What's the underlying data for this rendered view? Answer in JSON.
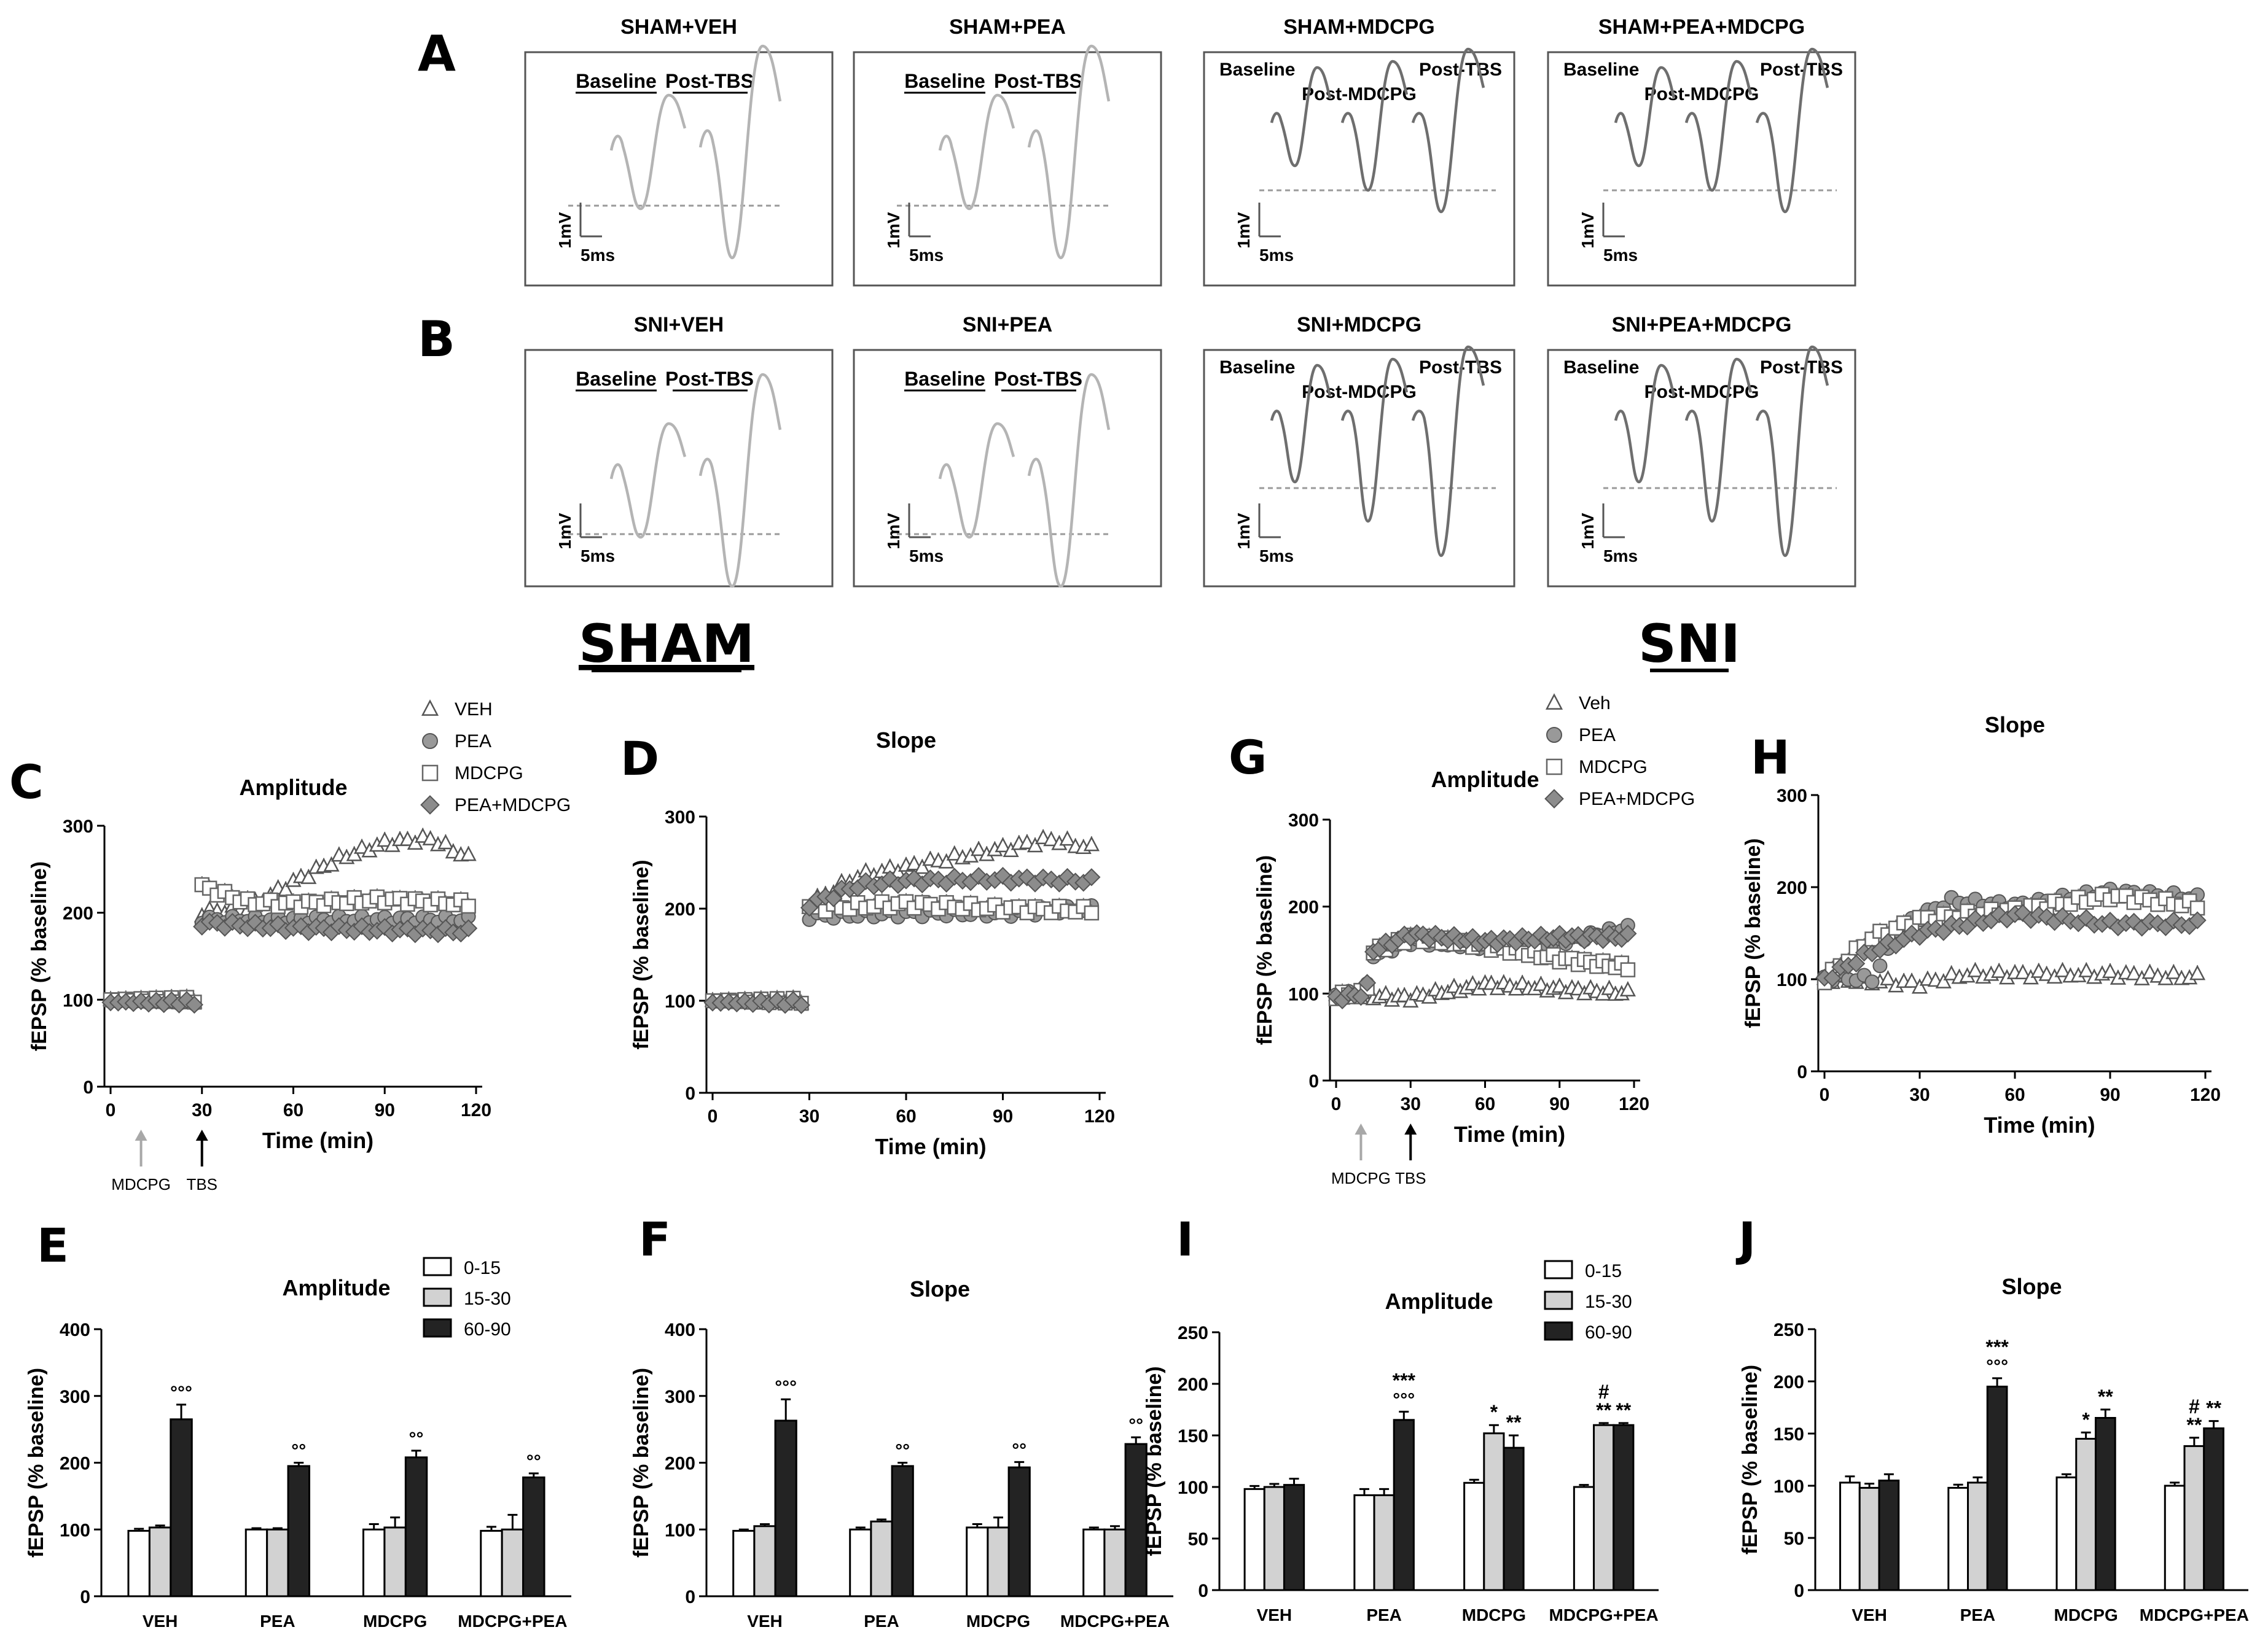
{
  "row_letters": {
    "A": "A",
    "B": "B"
  },
  "section_titles": {
    "sham": "SHAM",
    "sni": "SNI"
  },
  "trace_labels": {
    "baseline": "Baseline",
    "post_tbs": "Post-TBS",
    "post_mdcpg": "Post-MDCPG",
    "scale_mv": "1mV",
    "scale_ms": "5ms"
  },
  "trace_panels": [
    {
      "title": "SHAM+VEH",
      "type": "two"
    },
    {
      "title": "SHAM+PEA",
      "type": "two"
    },
    {
      "title": "SHAM+MDCPG",
      "type": "three"
    },
    {
      "title": "SHAM+PEA+MDCPG",
      "type": "three"
    },
    {
      "title": "SNI+VEH",
      "type": "two"
    },
    {
      "title": "SNI+PEA",
      "type": "two"
    },
    {
      "title": "SNI+MDCPG",
      "type": "three"
    },
    {
      "title": "SNI+PEA+MDCPG",
      "type": "three"
    }
  ],
  "markers": {
    "mdcpg": "MDCPG",
    "tbs": "TBS"
  },
  "time_label": "Time (min)",
  "y_label": "fEPSP (% baseline)",
  "chart_data": [
    {
      "panel": "C",
      "type": "scatter",
      "title": "Amplitude",
      "xlabel": "Time (min)",
      "ylabel": "fEPSP (% baseline)",
      "xlim": [
        0,
        120
      ],
      "ylim": [
        0,
        300
      ],
      "xticks": [
        0,
        30,
        60,
        90,
        120
      ],
      "yticks": [
        0,
        100,
        200,
        300
      ],
      "arrows": [
        {
          "x": 10,
          "label": "MDCPG",
          "color": "#a8a8a8"
        },
        {
          "x": 30,
          "label": "TBS",
          "color": "#000000"
        }
      ],
      "legend": [
        "VEH",
        "PEA",
        "MDCPG",
        "PEA+MDCPG"
      ],
      "series": [
        {
          "name": "VEH",
          "marker": "triangle",
          "baseline": 100,
          "points": [
            [
              30,
              200
            ],
            [
              45,
              205
            ],
            [
              60,
              235
            ],
            [
              75,
              262
            ],
            [
              90,
              280
            ],
            [
              105,
              285
            ],
            [
              118,
              262
            ]
          ]
        },
        {
          "name": "PEA",
          "marker": "circle",
          "baseline": 98,
          "points": [
            [
              30,
              192
            ],
            [
              120,
              192
            ]
          ]
        },
        {
          "name": "MDCPG",
          "marker": "square",
          "baseline": 100,
          "points": [
            [
              30,
              230
            ],
            [
              45,
              212
            ],
            [
              60,
              210
            ],
            [
              90,
              215
            ],
            [
              120,
              210
            ]
          ]
        },
        {
          "name": "PEA+MDCPG",
          "marker": "diamond",
          "baseline": 97,
          "points": [
            [
              30,
              188
            ],
            [
              60,
              182
            ],
            [
              90,
              180
            ],
            [
              120,
              178
            ]
          ]
        }
      ]
    },
    {
      "panel": "D",
      "type": "scatter",
      "title": "Slope",
      "xlabel": "Time (min)",
      "ylabel": "fEPSP (% baseline)",
      "xlim": [
        0,
        120
      ],
      "ylim": [
        0,
        300
      ],
      "xticks": [
        0,
        30,
        60,
        90,
        120
      ],
      "yticks": [
        0,
        100,
        200,
        300
      ],
      "arrows": [],
      "legend": [],
      "series": [
        {
          "name": "VEH",
          "marker": "triangle",
          "baseline": 100,
          "points": [
            [
              30,
              205
            ],
            [
              45,
              235
            ],
            [
              60,
              245
            ],
            [
              75,
              255
            ],
            [
              90,
              265
            ],
            [
              105,
              275
            ],
            [
              118,
              265
            ]
          ]
        },
        {
          "name": "PEA",
          "marker": "circle",
          "baseline": 100,
          "points": [
            [
              30,
              192
            ],
            [
              60,
              195
            ],
            [
              90,
              195
            ],
            [
              120,
              200
            ]
          ]
        },
        {
          "name": "MDCPG",
          "marker": "square",
          "baseline": 100,
          "points": [
            [
              30,
              200
            ],
            [
              60,
              205
            ],
            [
              90,
              200
            ],
            [
              120,
              198
            ]
          ]
        },
        {
          "name": "PEA+MDCPG",
          "marker": "diamond",
          "baseline": 98,
          "points": [
            [
              30,
              205
            ],
            [
              45,
              225
            ],
            [
              60,
              230
            ],
            [
              90,
              232
            ],
            [
              120,
              230
            ]
          ]
        }
      ]
    },
    {
      "panel": "G",
      "type": "scatter",
      "title": "Amplitude",
      "xlabel": "Time (min)",
      "ylabel": "fEPSP (% baseline)",
      "xlim": [
        0,
        120
      ],
      "ylim": [
        0,
        300
      ],
      "xticks": [
        0,
        30,
        60,
        90,
        120
      ],
      "yticks": [
        0,
        100,
        200,
        300
      ],
      "arrows": [
        {
          "x": 10,
          "label": "MDCPG",
          "color": "#a8a8a8"
        },
        {
          "x": 30,
          "label": "TBS",
          "color": "#000000"
        }
      ],
      "legend": [
        "Veh",
        "PEA",
        "MDCPG",
        "PEA+MDCPG"
      ],
      "series": [
        {
          "name": "Veh",
          "marker": "triangle",
          "points": [
            [
              0,
              98
            ],
            [
              30,
              95
            ],
            [
              60,
              110
            ],
            [
              90,
              105
            ],
            [
              118,
              100
            ]
          ]
        },
        {
          "name": "PEA",
          "marker": "circle",
          "points": [
            [
              0,
              98
            ],
            [
              12,
              100
            ],
            [
              15,
              145
            ],
            [
              30,
              160
            ],
            [
              60,
              155
            ],
            [
              90,
              160
            ],
            [
              118,
              175
            ]
          ]
        },
        {
          "name": "MDCPG",
          "marker": "square",
          "points": [
            [
              0,
              98
            ],
            [
              12,
              100
            ],
            [
              15,
              148
            ],
            [
              30,
              165
            ],
            [
              60,
              155
            ],
            [
              90,
              140
            ],
            [
              118,
              130
            ]
          ]
        },
        {
          "name": "PEA+MDCPG",
          "marker": "diamond",
          "points": [
            [
              0,
              95
            ],
            [
              12,
              100
            ],
            [
              15,
              150
            ],
            [
              30,
              168
            ],
            [
              60,
              160
            ],
            [
              90,
              165
            ],
            [
              118,
              165
            ]
          ]
        }
      ]
    },
    {
      "panel": "H",
      "type": "scatter",
      "title": "Slope",
      "xlabel": "Time (min)",
      "ylabel": "fEPSP (% baseline)",
      "xlim": [
        0,
        120
      ],
      "ylim": [
        0,
        300
      ],
      "xticks": [
        0,
        30,
        60,
        90,
        120
      ],
      "yticks": [
        0,
        100,
        200,
        300
      ],
      "arrows": [],
      "legend": [],
      "series": [
        {
          "name": "Veh",
          "marker": "triangle",
          "points": [
            [
              0,
              100
            ],
            [
              30,
              95
            ],
            [
              45,
              105
            ],
            [
              60,
              105
            ],
            [
              90,
              105
            ],
            [
              118,
              102
            ]
          ]
        },
        {
          "name": "PEA",
          "marker": "circle",
          "points": [
            [
              0,
              102
            ],
            [
              15,
              100
            ],
            [
              25,
              160
            ],
            [
              40,
              185
            ],
            [
              60,
              180
            ],
            [
              90,
              195
            ],
            [
              118,
              188
            ]
          ]
        },
        {
          "name": "MDCPG",
          "marker": "square",
          "points": [
            [
              0,
              100
            ],
            [
              15,
              145
            ],
            [
              30,
              165
            ],
            [
              60,
              175
            ],
            [
              90,
              190
            ],
            [
              118,
              180
            ]
          ]
        },
        {
          "name": "PEA+MDCPG",
          "marker": "diamond",
          "points": [
            [
              0,
              100
            ],
            [
              15,
              130
            ],
            [
              30,
              150
            ],
            [
              60,
              170
            ],
            [
              90,
              160
            ],
            [
              118,
              160
            ]
          ]
        }
      ]
    },
    {
      "panel": "E",
      "type": "bar",
      "title": "Amplitude",
      "ylabel": "fEPSP (% baseline)",
      "ylim": [
        0,
        400
      ],
      "yticks": [
        0,
        100,
        200,
        300,
        400
      ],
      "categories": [
        "VEH",
        "PEA",
        "MDCPG",
        "MDCPG+PEA"
      ],
      "legend": [
        "0-15",
        "15-30",
        "60-90"
      ],
      "series": [
        {
          "name": "0-15",
          "values": [
            98,
            100,
            100,
            98
          ],
          "errors": [
            3,
            2,
            8,
            6
          ]
        },
        {
          "name": "15-30",
          "values": [
            103,
            100,
            103,
            100
          ],
          "errors": [
            3,
            2,
            15,
            22
          ]
        },
        {
          "name": "60-90",
          "values": [
            265,
            195,
            208,
            178
          ],
          "errors": [
            22,
            5,
            10,
            6
          ]
        }
      ],
      "annotations": [
        {
          "cat": 0,
          "text": "°°°"
        },
        {
          "cat": 1,
          "text": "°°"
        },
        {
          "cat": 2,
          "text": "°°"
        },
        {
          "cat": 3,
          "text": "°°"
        }
      ]
    },
    {
      "panel": "F",
      "type": "bar",
      "title": "Slope",
      "ylabel": "fEPSP (% baseline)",
      "ylim": [
        0,
        400
      ],
      "yticks": [
        0,
        100,
        200,
        300,
        400
      ],
      "categories": [
        "VEH",
        "PEA",
        "MDCPG",
        "MDCPG+PEA"
      ],
      "legend": [],
      "series": [
        {
          "name": "0-15",
          "values": [
            98,
            100,
            103,
            100
          ],
          "errors": [
            2,
            3,
            5,
            3
          ]
        },
        {
          "name": "15-30",
          "values": [
            105,
            112,
            103,
            100
          ],
          "errors": [
            3,
            3,
            15,
            5
          ]
        },
        {
          "name": "60-90",
          "values": [
            263,
            195,
            193,
            228
          ],
          "errors": [
            32,
            5,
            8,
            10
          ]
        }
      ],
      "annotations": [
        {
          "cat": 0,
          "text": "°°°"
        },
        {
          "cat": 1,
          "text": "°°"
        },
        {
          "cat": 2,
          "text": "°°"
        },
        {
          "cat": 3,
          "text": "°°"
        }
      ]
    },
    {
      "panel": "I",
      "type": "bar",
      "title": "Amplitude",
      "ylabel": "fEPSP (% baseline)",
      "ylim": [
        0,
        250
      ],
      "yticks": [
        0,
        50,
        100,
        150,
        200,
        250
      ],
      "categories": [
        "VEH",
        "PEA",
        "MDCPG",
        "MDCPG+PEA"
      ],
      "legend": [
        "0-15",
        "15-30",
        "60-90"
      ],
      "series": [
        {
          "name": "0-15",
          "values": [
            98,
            92,
            104,
            100
          ],
          "errors": [
            3,
            6,
            3,
            2
          ]
        },
        {
          "name": "15-30",
          "values": [
            100,
            92,
            152,
            160
          ],
          "errors": [
            3,
            6,
            8,
            2
          ]
        },
        {
          "name": "60-90",
          "values": [
            102,
            165,
            138,
            160
          ],
          "errors": [
            6,
            8,
            12,
            2
          ]
        }
      ],
      "annotations": [
        {
          "cat": 1,
          "series": 2,
          "lines": [
            "***",
            "°°°"
          ]
        },
        {
          "cat": 2,
          "series": 1,
          "lines": [
            "*"
          ]
        },
        {
          "cat": 2,
          "series": 2,
          "lines": [
            "**"
          ]
        },
        {
          "cat": 3,
          "series": 1,
          "lines": [
            "#",
            "**"
          ]
        },
        {
          "cat": 3,
          "series": 2,
          "lines": [
            "**"
          ]
        }
      ]
    },
    {
      "panel": "J",
      "type": "bar",
      "title": "Slope",
      "ylabel": "fEPSP (% baseline)",
      "ylim": [
        0,
        250
      ],
      "yticks": [
        0,
        50,
        100,
        150,
        200,
        250
      ],
      "categories": [
        "VEH",
        "PEA",
        "MDCPG",
        "MDCPG+PEA"
      ],
      "legend": [],
      "series": [
        {
          "name": "0-15",
          "values": [
            103,
            98,
            108,
            100
          ],
          "errors": [
            6,
            3,
            3,
            3
          ]
        },
        {
          "name": "15-30",
          "values": [
            98,
            103,
            145,
            138
          ],
          "errors": [
            4,
            5,
            6,
            8
          ]
        },
        {
          "name": "60-90",
          "values": [
            105,
            195,
            165,
            155
          ],
          "errors": [
            6,
            8,
            8,
            7
          ]
        }
      ],
      "annotations": [
        {
          "cat": 1,
          "series": 2,
          "lines": [
            "***",
            "°°°"
          ]
        },
        {
          "cat": 2,
          "series": 1,
          "lines": [
            "*"
          ]
        },
        {
          "cat": 2,
          "series": 2,
          "lines": [
            "**"
          ]
        },
        {
          "cat": 3,
          "series": 1,
          "lines": [
            "#",
            "**"
          ]
        },
        {
          "cat": 3,
          "series": 2,
          "lines": [
            "**"
          ]
        }
      ]
    }
  ]
}
